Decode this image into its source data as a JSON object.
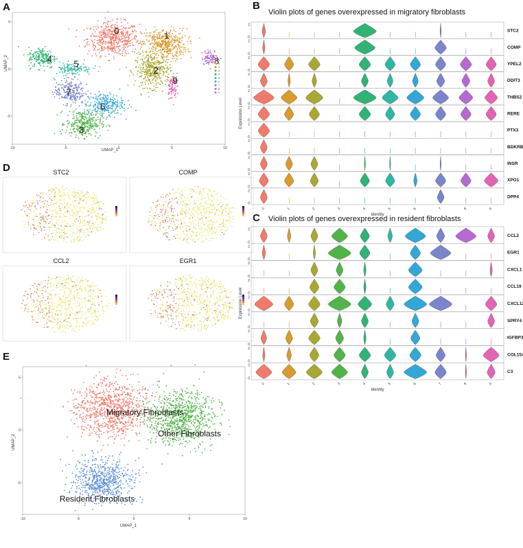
{
  "panels": {
    "A": {
      "letter": "A",
      "xlabel": "UMAP_1",
      "ylabel": "UMAP_2"
    },
    "B": {
      "letter": "B",
      "title": "Violin plots of genes overexpressed in migratory fibroblasts"
    },
    "C": {
      "letter": "C",
      "title": "Violin plots of genes overexpressed in resident fibroblasts"
    },
    "D": {
      "letter": "D"
    },
    "E": {
      "letter": "E",
      "xlabel": "UMAP_1",
      "ylabel": "UMAP_2"
    }
  },
  "cluster_colors": [
    "#f07a6b",
    "#d99a2e",
    "#a8a832",
    "#52b34a",
    "#30b374",
    "#2fb7a3",
    "#33a7d6",
    "#7a85cc",
    "#b56ad1",
    "#e264b4"
  ],
  "chart_data": [
    {
      "type": "scatter",
      "title": "",
      "xlabel": "UMAP_1",
      "ylabel": "UMAP_2",
      "xlim": [
        -10,
        10
      ],
      "ylim": [
        -8,
        6
      ],
      "xticks": [
        "-10",
        "-5",
        "0",
        "5",
        "10"
      ],
      "yticks": [
        "5",
        "0",
        "-5"
      ],
      "legend": [
        "0",
        "1",
        "2",
        "3",
        "4",
        "5",
        "6",
        "7",
        "8",
        "9"
      ],
      "cluster_labels": [
        {
          "label": "0",
          "x": -0.2,
          "y": 3.7
        },
        {
          "label": "1",
          "x": 4.5,
          "y": 3.2
        },
        {
          "label": "2",
          "x": 3.5,
          "y": -0.5
        },
        {
          "label": "3",
          "x": -3.5,
          "y": -6.8
        },
        {
          "label": "4",
          "x": -6.5,
          "y": 0.7
        },
        {
          "label": "5",
          "x": -4.0,
          "y": 0.2
        },
        {
          "label": "6",
          "x": -1.5,
          "y": -4.3
        },
        {
          "label": "7",
          "x": -4.7,
          "y": -2.8
        },
        {
          "label": "8",
          "x": 9.2,
          "y": 0.5
        },
        {
          "label": "9",
          "x": 5.3,
          "y": -1.6
        }
      ]
    },
    {
      "type": "violin",
      "title": "Violin plots of genes overexpressed in migratory fibroblasts",
      "xlabel": "Identity",
      "ylabel": "Expression Level",
      "categories": [
        "0",
        "1",
        "2",
        "3",
        "4",
        "5",
        "6",
        "7",
        "8",
        "9"
      ],
      "genes": [
        "STC2",
        "COMP",
        "YPEL2",
        "DDIT3",
        "THBS2",
        "RERE",
        "PTX3",
        "BDKRB2",
        "INSR",
        "XPO1",
        "DPP4"
      ],
      "widths": [
        [
          0.15,
          0,
          0,
          0,
          1.0,
          0,
          0,
          0.05,
          0,
          0
        ],
        [
          0.1,
          0,
          0,
          0,
          0.9,
          0,
          0,
          0.5,
          0,
          0
        ],
        [
          0.5,
          0.4,
          0.5,
          0,
          0.5,
          0.45,
          0.45,
          0.45,
          0.5,
          0.45
        ],
        [
          0.3,
          0.1,
          0.2,
          0,
          0.3,
          0.25,
          0.25,
          0.35,
          0.35,
          0.3
        ],
        [
          0.9,
          0.7,
          0.75,
          0,
          1.0,
          0.7,
          0.75,
          0.7,
          0.6,
          0.55
        ],
        [
          0.5,
          0.4,
          0.45,
          0,
          0.5,
          0.4,
          0.45,
          0.45,
          0.45,
          0.45
        ],
        [
          0.5,
          0,
          0,
          0,
          0,
          0,
          0,
          0,
          0,
          0
        ],
        [
          0.3,
          0,
          0,
          0,
          0,
          0,
          0,
          0,
          0,
          0
        ],
        [
          0.3,
          0.3,
          0.3,
          0,
          0.05,
          0.05,
          0,
          0.05,
          0,
          0
        ],
        [
          0.4,
          0.4,
          0.35,
          0,
          0.4,
          0.4,
          0.15,
          0.45,
          0.45,
          0.6
        ],
        [
          0.3,
          0,
          0,
          0,
          0,
          0,
          0,
          0.3,
          0,
          0
        ]
      ],
      "yticks": [
        "0",
        "2"
      ]
    },
    {
      "type": "violin",
      "title": "Violin plots of genes overexpressed in resident fibroblasts",
      "xlabel": "Identity",
      "ylabel": "Expression Level",
      "categories": [
        "0",
        "1",
        "2",
        "3",
        "4",
        "5",
        "6",
        "7",
        "8",
        "9"
      ],
      "genes": [
        "CCL2",
        "EGR1",
        "CXCL1",
        "CCL19",
        "CXCL12",
        "SPRY4",
        "IGFBP3",
        "COL15A1",
        "C3"
      ],
      "widths": [
        [
          0.3,
          0.15,
          0.3,
          0.7,
          0.4,
          0.2,
          0.9,
          0.35,
          0.9,
          0.3
        ],
        [
          0.15,
          0,
          0.1,
          1.0,
          0.45,
          0,
          0.45,
          0.9,
          0,
          0
        ],
        [
          0,
          0,
          0.3,
          0.3,
          0.1,
          0,
          0.6,
          0,
          0,
          0.1
        ],
        [
          0,
          0,
          0.4,
          0.5,
          0.1,
          0,
          0.6,
          0,
          0,
          0
        ],
        [
          0.8,
          0.4,
          0.5,
          1.0,
          0.6,
          0.35,
          1.0,
          1.0,
          0,
          0.5
        ],
        [
          0,
          0,
          0.35,
          0.2,
          0.3,
          0,
          0.3,
          0,
          0,
          0.3
        ],
        [
          0.25,
          0.3,
          0.5,
          0.35,
          0.1,
          0,
          0.4,
          0,
          0,
          0
        ],
        [
          0.1,
          0.2,
          0.4,
          0.5,
          0.5,
          0.5,
          0.5,
          0.4,
          0.05,
          0.7
        ],
        [
          0.7,
          0.6,
          0.7,
          0.7,
          0.3,
          0.3,
          1.0,
          0.5,
          0.05,
          0.35
        ]
      ],
      "yticks": [
        "0",
        "2"
      ]
    },
    {
      "type": "scatter",
      "title": "",
      "xlabel": "UMAP_1",
      "ylabel": "UMAP_2",
      "xlim": [
        -10,
        10
      ],
      "ylim": [
        -8,
        6
      ],
      "xticks": [
        "-10",
        "-5",
        "0",
        "5",
        "10"
      ],
      "yticks": [
        "5",
        "0",
        "-5"
      ],
      "groups": [
        {
          "label": "Migratory Fibroblasts",
          "x": 1.0,
          "y": 1.4,
          "color": "#f07a6b"
        },
        {
          "label": "Other Fibroblasts",
          "x": 5.0,
          "y": -0.6,
          "color": "#52b34a"
        },
        {
          "label": "Resident Fibroblasts",
          "x": -3.3,
          "y": -6.8,
          "color": "#5b8fd6"
        }
      ]
    }
  ],
  "feature_plots": [
    {
      "title": "STC2"
    },
    {
      "title": "COMP"
    },
    {
      "title": "CCL2"
    },
    {
      "title": "EGR1"
    }
  ],
  "text": {
    "identity": "Identity",
    "expression_level": "Expression Level"
  }
}
